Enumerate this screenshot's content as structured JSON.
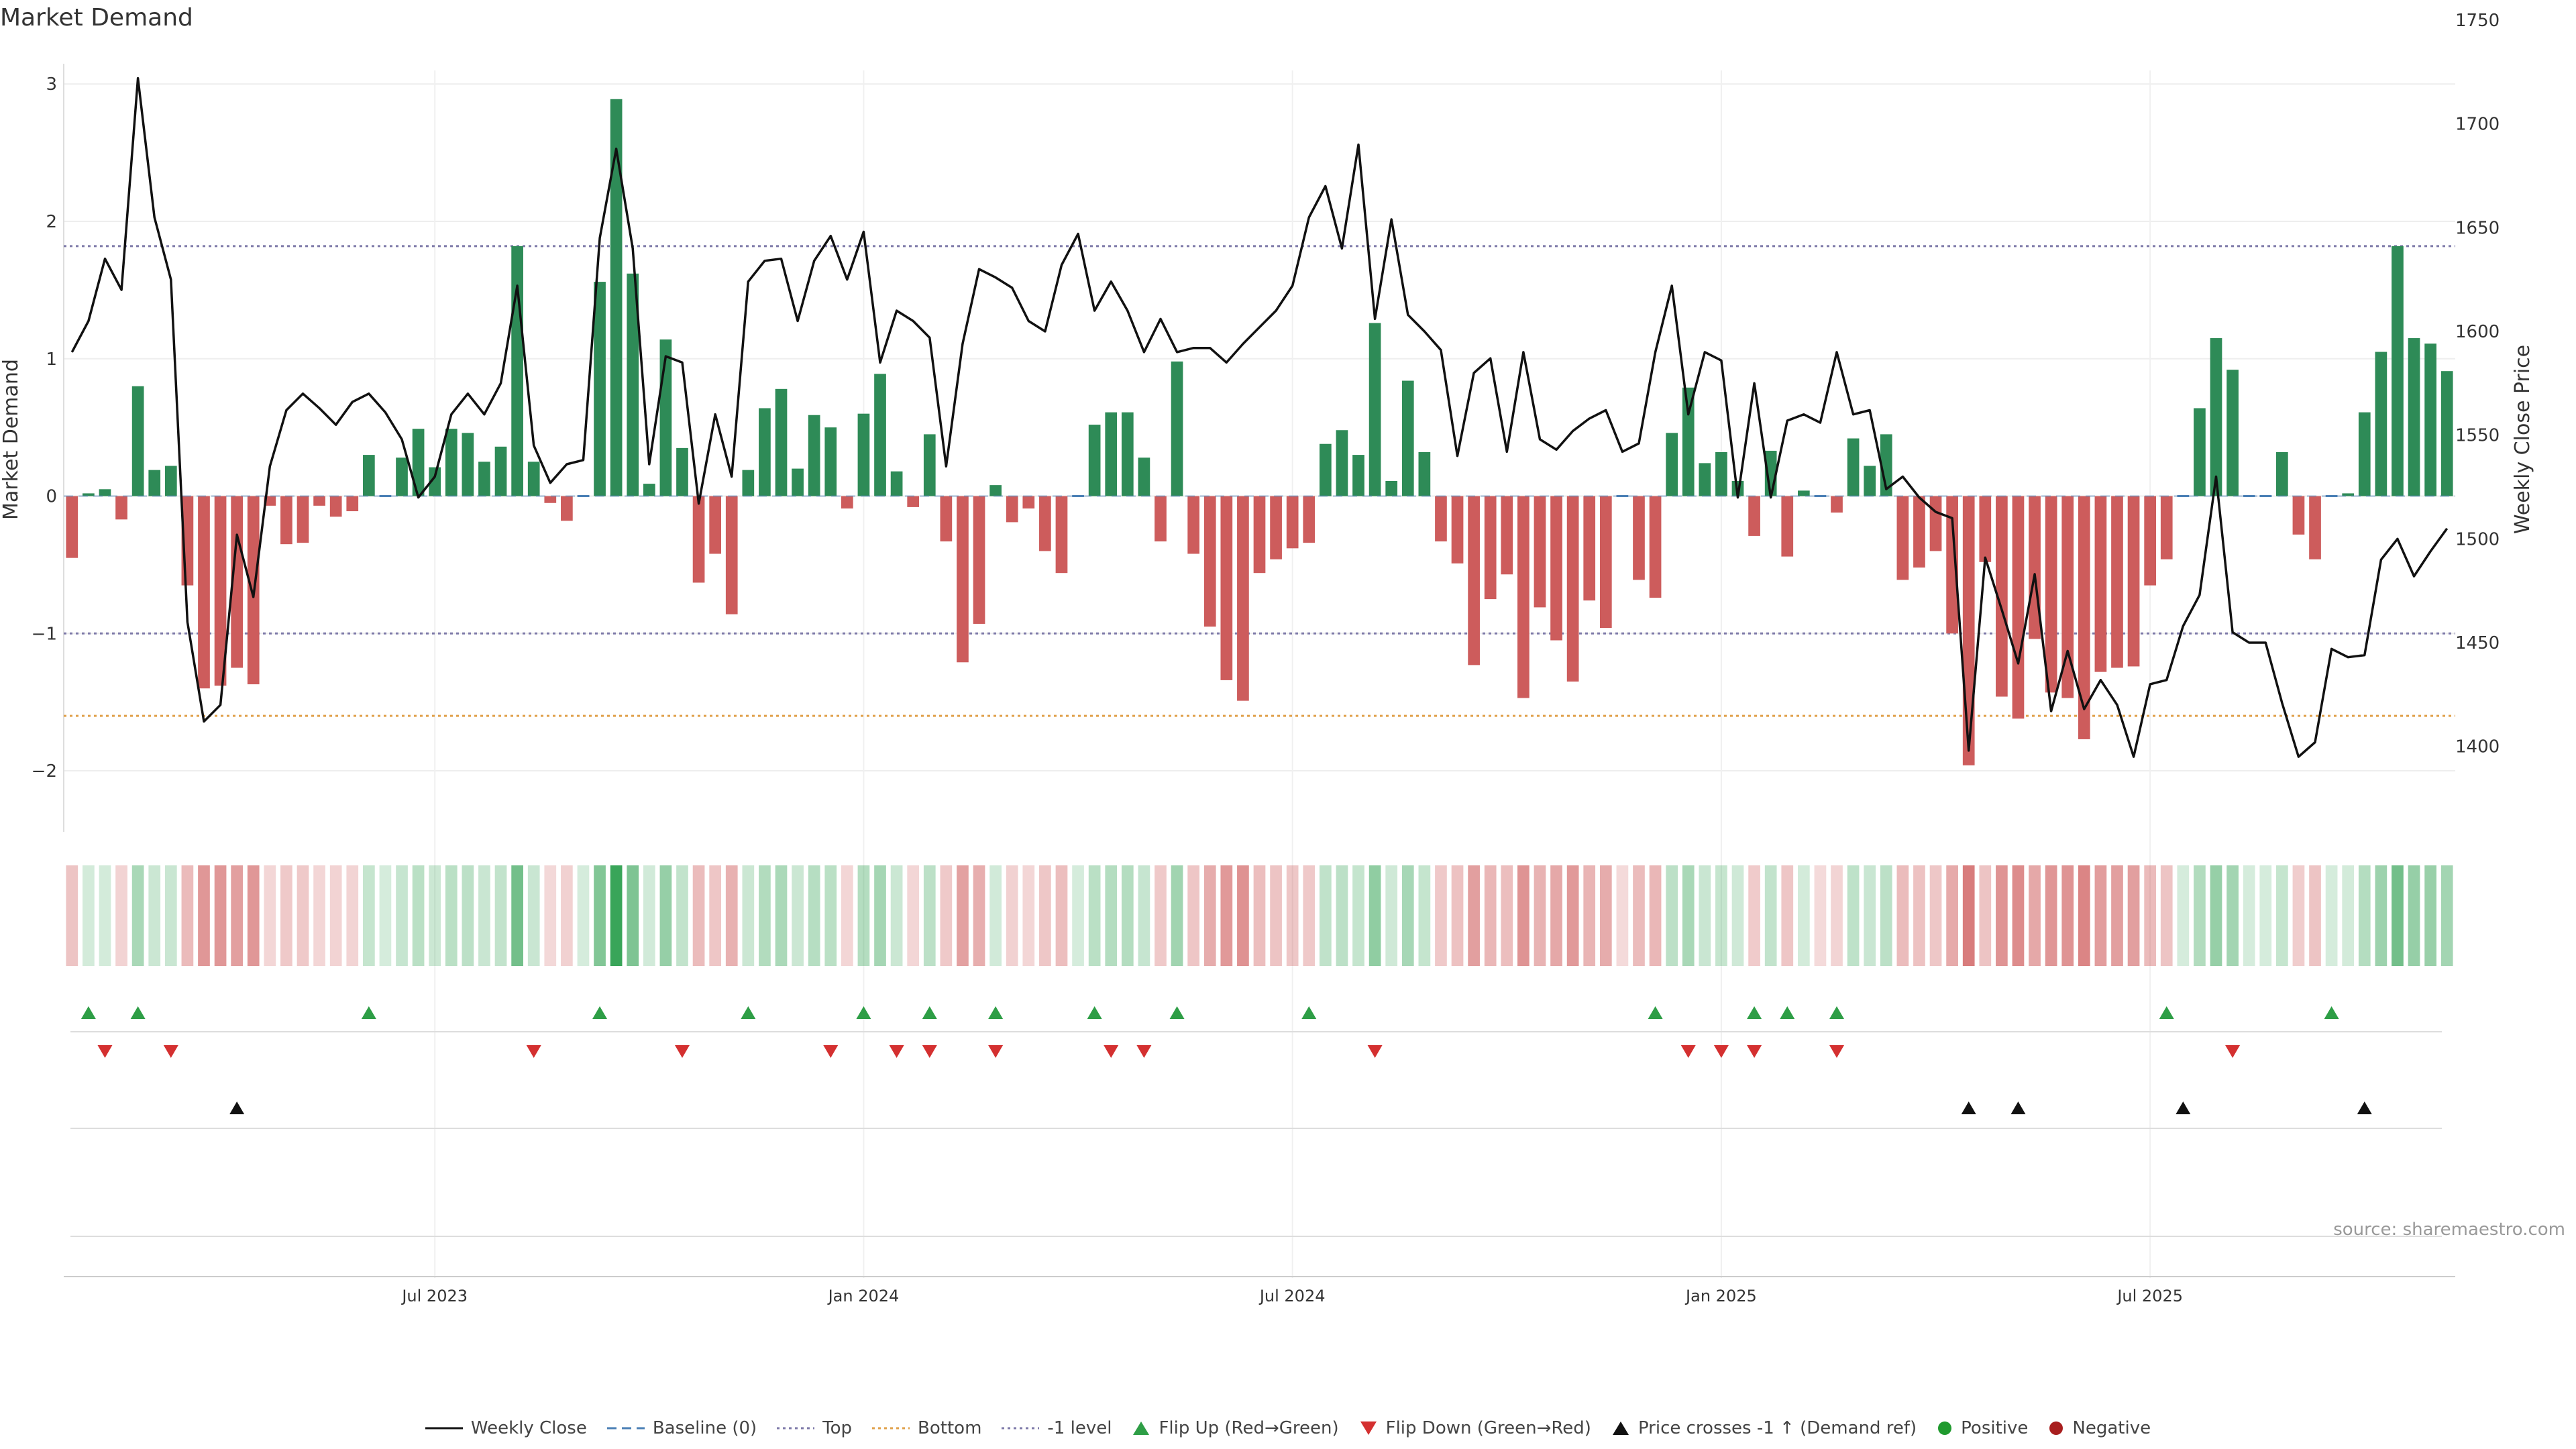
{
  "title": "Market Demand",
  "source": "source: sharemaestro.com",
  "colors": {
    "pos_bar": "#2e8b57",
    "neg_bar": "#cd5c5c",
    "price": "#111111",
    "top": "#7d79a8",
    "bottom": "#e0a04a",
    "neg1": "#7d79a8",
    "flip_up": "#2e9e46",
    "flip_down": "#d43030",
    "cross": "#111111",
    "positive": "#1f9a2e",
    "negative": "#a81e1e"
  },
  "chart_data": {
    "type": "bar",
    "title": "Market Demand",
    "xlabel": "",
    "ylabel": "Market Demand",
    "y2label": "Weekly Close Price",
    "ylim": [
      -2.2,
      3.05
    ],
    "y2lim": [
      1375,
      1750
    ],
    "yticks": [
      -2,
      -1,
      0,
      1,
      2,
      3
    ],
    "y2ticks": [
      1400,
      1450,
      1500,
      1550,
      1600,
      1650,
      1700,
      1750
    ],
    "yticklabels": [
      "−2",
      "−1",
      "0",
      "1",
      "2",
      "3"
    ],
    "xticks": [
      {
        "week": 22,
        "label": "Jul 2023"
      },
      {
        "week": 48,
        "label": "Jan 2024"
      },
      {
        "week": 74,
        "label": "Jul 2024"
      },
      {
        "week": 100,
        "label": "Jan 2025"
      },
      {
        "week": 126,
        "label": "Jul 2025"
      }
    ],
    "levels": {
      "top": 1.82,
      "bottom": -1.6,
      "neg1": -1.0,
      "baseline": 0
    },
    "demand": [
      -0.45,
      0.02,
      0.05,
      -0.17,
      0.8,
      0.19,
      0.22,
      -0.65,
      -1.4,
      -1.38,
      -1.25,
      -1.37,
      -0.07,
      -0.35,
      -0.34,
      -0.07,
      -0.15,
      -0.11,
      0.3,
      0.01,
      0.28,
      0.49,
      0.21,
      0.49,
      0.46,
      0.25,
      0.36,
      1.82,
      0.25,
      -0.05,
      -0.18,
      0.0,
      1.56,
      2.89,
      1.62,
      0.09,
      1.14,
      0.35,
      -0.63,
      -0.42,
      -0.86,
      0.19,
      0.64,
      0.78,
      0.2,
      0.59,
      0.5,
      -0.09,
      0.6,
      0.89,
      0.18,
      -0.08,
      0.45,
      -0.33,
      -1.21,
      -0.93,
      0.08,
      -0.19,
      -0.09,
      -0.4,
      -0.56,
      0.0,
      0.52,
      0.61,
      0.61,
      0.28,
      -0.33,
      0.98,
      -0.42,
      -0.95,
      -1.34,
      -1.49,
      -0.56,
      -0.46,
      -0.38,
      -0.34,
      0.38,
      0.48,
      0.3,
      1.26,
      0.11,
      0.84,
      0.32,
      -0.33,
      -0.49,
      -1.23,
      -0.75,
      -0.57,
      -1.47,
      -0.81,
      -1.05,
      -1.35,
      -0.76,
      -0.96,
      -0.01,
      -0.61,
      -0.74,
      0.46,
      0.79,
      0.24,
      0.32,
      0.11,
      -0.29,
      0.33,
      -0.44,
      0.04,
      -0.01,
      -0.12,
      0.42,
      0.22,
      0.45,
      -0.61,
      -0.52,
      -0.4,
      -1.0,
      -1.96,
      -0.48,
      -1.46,
      -1.62,
      -1.04,
      -1.43,
      -1.47,
      -1.77,
      -1.28,
      -1.25,
      -1.24,
      -0.65,
      -0.46,
      0.01,
      0.64,
      1.15,
      0.92,
      0.01,
      0.01,
      0.32,
      -0.28,
      -0.46,
      0.0,
      0.02,
      0.61,
      1.05,
      1.82,
      1.15,
      1.11,
      0.91
    ],
    "price": [
      1590,
      1605,
      1635,
      1620,
      1722,
      1655,
      1625,
      1460,
      1412,
      1420,
      1502,
      1472,
      1535,
      1562,
      1570,
      1563,
      1555,
      1566,
      1570,
      1561,
      1548,
      1520,
      1530,
      1560,
      1570,
      1560,
      1575,
      1622,
      1545,
      1527,
      1536,
      1538,
      1645,
      1688,
      1640,
      1536,
      1588,
      1585,
      1517,
      1560,
      1530,
      1624,
      1634,
      1635,
      1605,
      1634,
      1646,
      1625,
      1648,
      1585,
      1610,
      1605,
      1597,
      1535,
      1594,
      1630,
      1626,
      1621,
      1605,
      1600,
      1632,
      1647,
      1610,
      1624,
      1610,
      1590,
      1606,
      1590,
      1592,
      1592,
      1585,
      1594,
      1602,
      1610,
      1622,
      1655,
      1670,
      1640,
      1690,
      1606,
      1654,
      1608,
      1600,
      1591,
      1540,
      1580,
      1587,
      1542,
      1590,
      1548,
      1543,
      1552,
      1558,
      1562,
      1542,
      1546,
      1590,
      1622,
      1560,
      1590,
      1586,
      1520,
      1575,
      1520,
      1557,
      1560,
      1556,
      1590,
      1560,
      1562,
      1524,
      1530,
      1520,
      1513,
      1510,
      1398,
      1491,
      1466,
      1440,
      1483,
      1417,
      1446,
      1418,
      1432,
      1420,
      1395,
      1430,
      1432,
      1458,
      1473,
      1530,
      1455,
      1450,
      1450,
      1421,
      1395,
      1402,
      1447,
      1443,
      1444,
      1490,
      1500,
      1482,
      1494,
      1505
    ]
  },
  "markers": {
    "flip_up": [
      1,
      4,
      18,
      32,
      41,
      48,
      52,
      56,
      62,
      67,
      75,
      96,
      102,
      104,
      107,
      127,
      137
    ],
    "flip_down": [
      2,
      6,
      28,
      37,
      46,
      50,
      52,
      56,
      63,
      65,
      79,
      98,
      100,
      102,
      107,
      131
    ],
    "price_cross": [
      10,
      115,
      118,
      128,
      139
    ],
    "positive": [],
    "negative": []
  },
  "axes": {
    "left_label": "Market Demand",
    "right_label": "Weekly Close Price"
  },
  "legend": [
    {
      "key": "weekly_close",
      "label": "Weekly Close"
    },
    {
      "key": "baseline",
      "label": "Baseline (0)"
    },
    {
      "key": "top",
      "label": "Top"
    },
    {
      "key": "bottom",
      "label": "Bottom"
    },
    {
      "key": "neg1",
      "label": "-1 level"
    },
    {
      "key": "flip_up",
      "label": "Flip Up (Red→Green)"
    },
    {
      "key": "flip_down",
      "label": "Flip Down (Green→Red)"
    },
    {
      "key": "cross",
      "label": "Price crosses -1 ↑ (Demand ref)"
    },
    {
      "key": "positive",
      "label": "Positive"
    },
    {
      "key": "negative",
      "label": "Negative"
    }
  ]
}
